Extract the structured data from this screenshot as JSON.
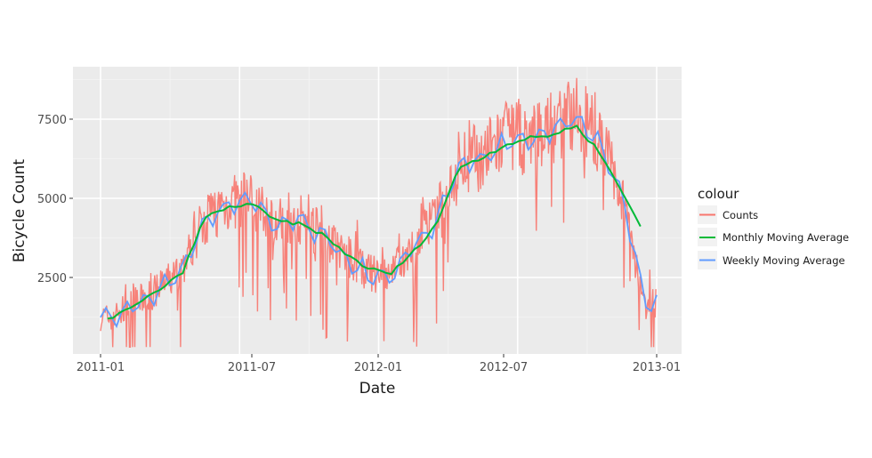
{
  "chart_data": {
    "type": "line",
    "title": "",
    "xlabel": "Date",
    "ylabel": "Bicycle Count",
    "x_ticks": [
      "2011-01",
      "2011-07",
      "2012-01",
      "2012-07",
      "2013-01"
    ],
    "y_ticks": [
      2500,
      5000,
      7500
    ],
    "xlim": [
      "2010-12-01",
      "2013-01-31"
    ],
    "ylim": [
      0,
      8900
    ],
    "grid": true,
    "legend": {
      "title": "colour",
      "position": "right",
      "entries": [
        {
          "label": "Counts",
          "color": "#F8766D"
        },
        {
          "label": "Monthly Moving Average",
          "color": "#00BA38"
        },
        {
          "label": "Weekly Moving Average",
          "color": "#619CFF"
        }
      ]
    },
    "x": [
      "2011-01",
      "2011-02",
      "2011-03",
      "2011-04",
      "2011-05",
      "2011-06",
      "2011-07",
      "2011-08",
      "2011-09",
      "2011-10",
      "2011-11",
      "2011-12",
      "2012-01",
      "2012-02",
      "2012-03",
      "2012-04",
      "2012-05",
      "2012-06",
      "2012-07",
      "2012-08",
      "2012-09",
      "2012-10",
      "2012-11",
      "2012-12"
    ],
    "series": [
      {
        "name": "Monthly Moving Average",
        "values": [
          1250,
          1600,
          2100,
          2600,
          4400,
          4700,
          4850,
          4300,
          4200,
          3900,
          3300,
          2800,
          2600,
          3300,
          4200,
          6000,
          6300,
          6700,
          6900,
          7000,
          7300,
          6500,
          5200,
          3900
        ]
      },
      {
        "name": "Weekly Moving Average",
        "values": [
          1200,
          1650,
          2050,
          2700,
          4300,
          4750,
          4900,
          4100,
          4300,
          3800,
          3200,
          2600,
          2400,
          3400,
          4300,
          6100,
          6200,
          6800,
          6700,
          7100,
          7600,
          6800,
          5100,
          1600
        ]
      },
      {
        "name": "Counts",
        "values": [
          1000,
          1800,
          2200,
          2900,
          4600,
          5200,
          5300,
          4400,
          4600,
          3500,
          3100,
          2300,
          1600,
          3600,
          4800,
          7300,
          6500,
          7200,
          7000,
          7400,
          8200,
          7000,
          5300,
          800
        ]
      }
    ]
  },
  "legend": {
    "title": "colour",
    "items": [
      "Counts",
      "Monthly Moving Average",
      "Weekly Moving Average"
    ]
  },
  "axes": {
    "x_title": "Date",
    "y_title": "Bicycle Count",
    "x_tick_labels": [
      "2011-01",
      "2011-07",
      "2012-01",
      "2012-07",
      "2013-01"
    ],
    "y_tick_labels": [
      "2500",
      "5000",
      "7500"
    ]
  }
}
